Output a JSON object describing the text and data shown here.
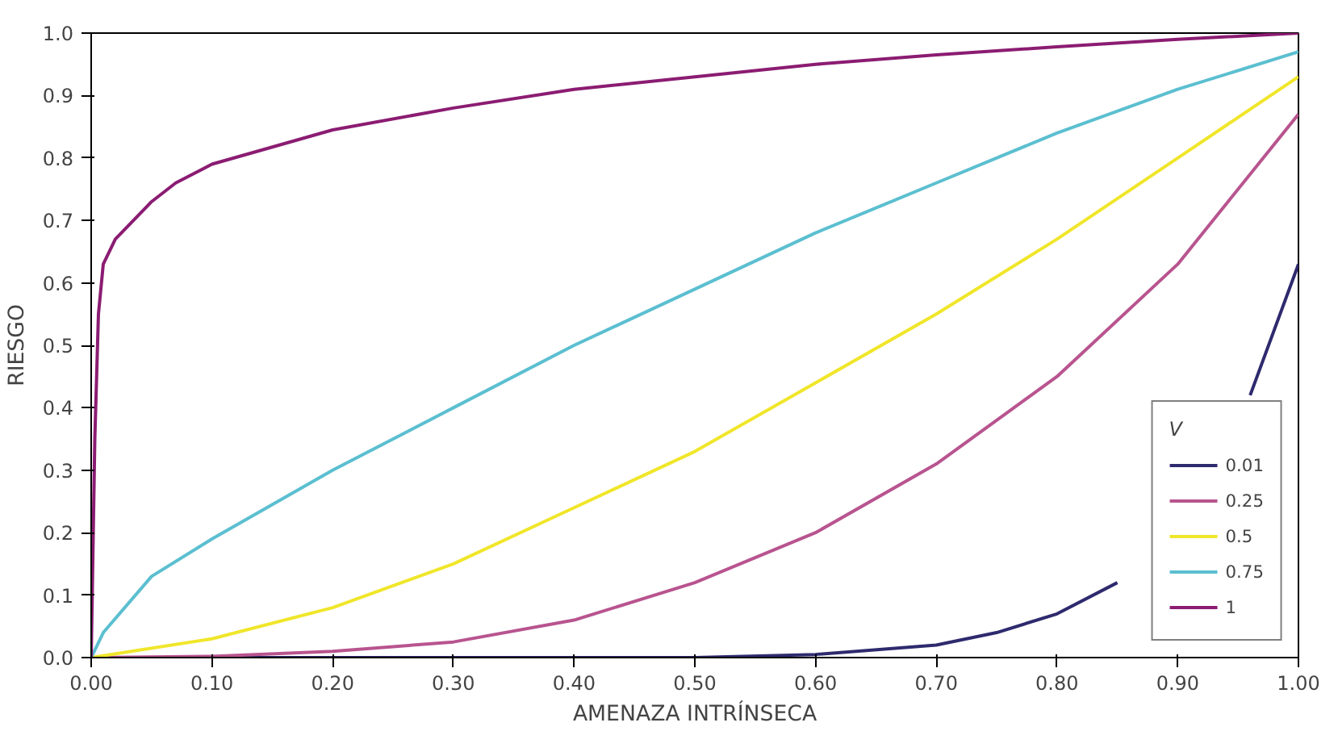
{
  "chart_data": {
    "type": "line",
    "xlabel": "AMENAZA INTRÍNSECA",
    "ylabel": "RIESGO",
    "legend_title": "V",
    "legend": "bottom right",
    "grid": false,
    "marker": "none",
    "line_style": "solid",
    "xlim": [
      0,
      1
    ],
    "ylim": [
      0,
      1
    ],
    "xticks": [
      {
        "value": 0,
        "label": "0.00"
      },
      {
        "value": 0.1,
        "label": "0.10"
      },
      {
        "value": 0.2,
        "label": "0.20"
      },
      {
        "value": 0.3,
        "label": "0.30"
      },
      {
        "value": 0.4,
        "label": "0.40"
      },
      {
        "value": 0.5,
        "label": "0.50"
      },
      {
        "value": 0.6,
        "label": "0.60"
      },
      {
        "value": 0.7,
        "label": "0.70"
      },
      {
        "value": 0.8,
        "label": "0.80"
      },
      {
        "value": 0.9,
        "label": "0.90"
      },
      {
        "value": 1,
        "label": "1.00"
      }
    ],
    "yticks": [
      {
        "value": 0,
        "label": "0.0"
      },
      0.1,
      0.2,
      0.3,
      0.4,
      0.5,
      0.6,
      0.7,
      0.8,
      0.9,
      {
        "value": 1,
        "label": "1.0"
      }
    ],
    "series": [
      {
        "name": "0.01",
        "color": "#2e2a6e",
        "x": [
          0,
          0.5,
          0.6,
          0.7,
          0.75,
          0.8,
          0.85,
          0.9,
          0.96,
          1.0
        ],
        "values": [
          0,
          0,
          0.005,
          0.02,
          0.04,
          0.07,
          0.12,
          null,
          0.42,
          0.63
        ]
      },
      {
        "name": "0.25",
        "color": "#b8548f",
        "x": [
          0,
          0.1,
          0.2,
          0.3,
          0.4,
          0.5,
          0.6,
          0.7,
          0.8,
          0.9,
          1.0
        ],
        "values": [
          0,
          0.002,
          0.01,
          0.025,
          0.06,
          0.12,
          0.2,
          0.31,
          0.45,
          0.63,
          0.87
        ]
      },
      {
        "name": "0.5",
        "color": "#f0e62a",
        "x": [
          0,
          0.1,
          0.2,
          0.3,
          0.4,
          0.5,
          0.6,
          0.7,
          0.8,
          0.9,
          1.0
        ],
        "values": [
          0,
          0.03,
          0.08,
          0.15,
          0.24,
          0.33,
          0.44,
          0.55,
          0.67,
          0.8,
          0.93
        ]
      },
      {
        "name": "0.75",
        "color": "#5bbfd0",
        "x": [
          0,
          0.01,
          0.05,
          0.1,
          0.2,
          0.3,
          0.4,
          0.5,
          0.6,
          0.7,
          0.8,
          0.9,
          1.0
        ],
        "values": [
          0,
          0.04,
          0.13,
          0.19,
          0.3,
          0.4,
          0.5,
          0.59,
          0.68,
          0.76,
          0.84,
          0.91,
          0.97
        ]
      },
      {
        "name": "1",
        "color": "#8b1c72",
        "x": [
          0,
          0.003,
          0.006,
          0.01,
          0.02,
          0.05,
          0.07,
          0.1,
          0.2,
          0.3,
          0.4,
          0.5,
          0.6,
          0.7,
          0.8,
          0.9,
          1.0
        ],
        "values": [
          0,
          0.35,
          0.55,
          0.63,
          0.67,
          0.73,
          0.76,
          0.79,
          0.845,
          0.88,
          0.91,
          0.93,
          0.95,
          0.965,
          0.978,
          0.99,
          1.0
        ]
      }
    ]
  }
}
